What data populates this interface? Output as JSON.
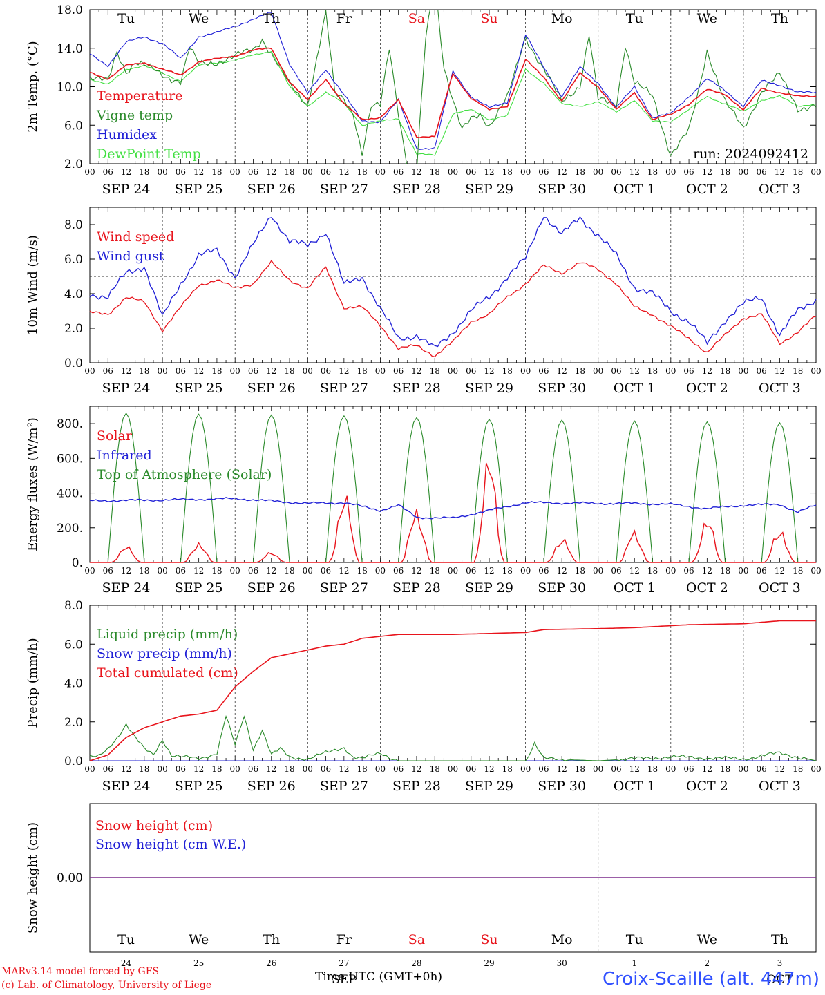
{
  "footer": {
    "credit_line1": "MARv3.14 model forced by GFS",
    "credit_line2": "(c) Lab. of Climatology, University of Liege",
    "time_axis_label": "Time UTC (GMT+0h)",
    "station": "Croix-Scaille (alt. 447m)"
  },
  "colors": {
    "red": "#e8141c",
    "green": "#2a8a2a",
    "blue": "#1f1fd6",
    "lightgreen": "#44e044",
    "weekend": "#e8141c",
    "purple": "#7a2a8a"
  },
  "days": {
    "weekday": [
      "Tu",
      "We",
      "Th",
      "Fr",
      "Sa",
      "Su",
      "Mo",
      "Tu",
      "We",
      "Th"
    ],
    "weekend_flags": [
      false,
      false,
      false,
      false,
      true,
      true,
      false,
      false,
      false,
      false
    ],
    "date_labels": [
      "SEP 24",
      "SEP 25",
      "SEP 26",
      "SEP 27",
      "SEP 28",
      "SEP 29",
      "SEP 30",
      "OCT  1",
      "OCT  2",
      "OCT  3"
    ],
    "day_numbers": [
      "24",
      "25",
      "26",
      "27",
      "28",
      "29",
      "30",
      "1",
      "2",
      "3"
    ],
    "month_markers": [
      "SEP",
      "OCT"
    ],
    "hour_ticks": [
      "00",
      "06",
      "12",
      "18"
    ],
    "final_tick": "00"
  },
  "chart_data": [
    {
      "type": "line",
      "panel": "temperature",
      "ylabel": "2m Temp. (°C)",
      "ylim": [
        2,
        18
      ],
      "yticks": [
        "2.0",
        "6.0",
        "10.0",
        "14.0",
        "18.0"
      ],
      "run_label": "run: 2024092412",
      "x_unit": "hours from 2024-09-24 00 UTC",
      "series": [
        {
          "name": "Temperature",
          "color": "red",
          "x": [
            0,
            6,
            12,
            18,
            24,
            30,
            36,
            42,
            48,
            54,
            60,
            66,
            72,
            78,
            84,
            90,
            96,
            102,
            108,
            114,
            120,
            126,
            132,
            138,
            144,
            150,
            156,
            162,
            168,
            174,
            180,
            186,
            192,
            198,
            204,
            210,
            216,
            222,
            228,
            234,
            240
          ],
          "y": [
            11.5,
            10.8,
            12.2,
            12.5,
            11.8,
            11.2,
            12.6,
            12.9,
            13.2,
            13.8,
            14.0,
            10.5,
            8.6,
            10.8,
            8.2,
            6.6,
            6.8,
            8.6,
            4.8,
            4.8,
            11.4,
            8.8,
            7.6,
            8.0,
            12.8,
            11.0,
            8.5,
            11.4,
            10.0,
            7.6,
            9.4,
            6.6,
            7.1,
            8.2,
            9.7,
            9.2,
            7.6,
            9.8,
            9.4,
            9.0,
            9.0
          ]
        },
        {
          "name": "Vigne temp",
          "color": "green",
          "x": [
            0,
            6,
            9,
            12,
            15,
            18,
            24,
            30,
            33,
            36,
            42,
            48,
            54,
            57,
            60,
            66,
            72,
            78,
            81,
            84,
            87,
            90,
            93,
            96,
            99,
            102,
            105,
            108,
            111,
            114,
            117,
            120,
            123,
            126,
            129,
            132,
            138,
            144,
            150,
            156,
            162,
            165,
            168,
            174,
            177,
            180,
            186,
            192,
            198,
            201,
            204,
            210,
            216,
            222,
            228,
            234,
            240
          ],
          "y": [
            11.0,
            10.5,
            13.6,
            11.6,
            12.6,
            12.2,
            11.2,
            10.6,
            14.0,
            12.3,
            12.6,
            13.1,
            13.9,
            15.0,
            13.4,
            10.2,
            8.2,
            17.6,
            9.2,
            8.8,
            7.4,
            3.0,
            7.8,
            8.0,
            14.2,
            7.4,
            1.6,
            1.0,
            15.0,
            21.0,
            12.2,
            8.6,
            5.4,
            6.6,
            7.2,
            6.0,
            8.8,
            15.2,
            11.8,
            8.4,
            10.2,
            15.4,
            8.6,
            8.2,
            14.4,
            10.4,
            9.0,
            3.0,
            5.4,
            9.2,
            13.8,
            8.4,
            5.6,
            9.6,
            11.2,
            7.8,
            8.0
          ]
        },
        {
          "name": "Humidex",
          "color": "blue",
          "x": [
            0,
            6,
            12,
            18,
            24,
            30,
            36,
            42,
            48,
            54,
            60,
            66,
            72,
            78,
            84,
            90,
            96,
            102,
            108,
            114,
            120,
            126,
            132,
            138,
            144,
            150,
            156,
            162,
            168,
            174,
            180,
            186,
            192,
            198,
            204,
            210,
            216,
            222,
            228,
            234,
            240
          ],
          "y": [
            13.4,
            12.2,
            14.6,
            15.2,
            14.5,
            12.9,
            15.2,
            15.6,
            16.3,
            17.0,
            17.7,
            12.4,
            9.3,
            11.8,
            9.2,
            6.4,
            6.4,
            8.6,
            3.6,
            3.6,
            11.6,
            9.0,
            7.8,
            8.4,
            15.4,
            12.0,
            9.0,
            12.0,
            10.4,
            7.8,
            10.0,
            6.8,
            7.2,
            9.0,
            10.8,
            9.6,
            8.0,
            10.6,
            10.2,
            9.4,
            9.4
          ]
        },
        {
          "name": "DewPoint Temp",
          "color": "lightgreen",
          "x": [
            0,
            6,
            12,
            18,
            24,
            30,
            36,
            42,
            48,
            54,
            60,
            66,
            72,
            78,
            84,
            90,
            96,
            102,
            108,
            114,
            120,
            126,
            132,
            138,
            144,
            150,
            156,
            162,
            168,
            174,
            180,
            186,
            192,
            198,
            204,
            210,
            216,
            222,
            228,
            234,
            240
          ],
          "y": [
            10.8,
            10.2,
            11.8,
            12.2,
            11.4,
            10.6,
            12.2,
            12.5,
            12.7,
            13.3,
            13.7,
            10.0,
            8.0,
            9.4,
            8.3,
            6.0,
            6.4,
            6.7,
            3.0,
            2.9,
            7.2,
            7.6,
            6.6,
            7.0,
            11.8,
            10.4,
            8.2,
            8.0,
            8.4,
            7.4,
            8.6,
            6.4,
            6.4,
            7.6,
            9.0,
            8.2,
            7.4,
            8.6,
            9.0,
            8.0,
            8.2
          ]
        }
      ]
    },
    {
      "type": "line",
      "panel": "wind",
      "ylabel": "10m Wind (m/s)",
      "ylim": [
        0,
        9
      ],
      "yticks": [
        "0.0",
        "2.0",
        "4.0",
        "6.0",
        "8.0"
      ],
      "reference_line": 5,
      "series": [
        {
          "name": "Wind speed",
          "color": "red",
          "x": [
            0,
            6,
            12,
            18,
            24,
            30,
            36,
            42,
            48,
            54,
            60,
            66,
            72,
            78,
            84,
            90,
            96,
            102,
            108,
            114,
            120,
            126,
            132,
            138,
            144,
            150,
            156,
            162,
            168,
            174,
            180,
            186,
            192,
            198,
            204,
            210,
            216,
            222,
            228,
            234,
            240
          ],
          "y": [
            2.9,
            2.8,
            3.8,
            3.5,
            1.9,
            3.2,
            4.5,
            4.8,
            4.3,
            4.6,
            5.8,
            4.8,
            4.3,
            5.5,
            3.2,
            3.2,
            2.2,
            0.8,
            1.0,
            0.4,
            1.2,
            2.4,
            2.8,
            3.8,
            4.6,
            5.6,
            5.2,
            5.8,
            5.4,
            4.6,
            3.2,
            2.8,
            2.1,
            1.4,
            0.6,
            1.6,
            2.6,
            2.8,
            1.1,
            1.8,
            2.7
          ]
        },
        {
          "name": "Wind gust",
          "color": "blue",
          "x": [
            0,
            6,
            12,
            18,
            24,
            30,
            36,
            42,
            48,
            54,
            60,
            66,
            72,
            78,
            84,
            90,
            96,
            102,
            108,
            114,
            120,
            126,
            132,
            138,
            144,
            150,
            156,
            162,
            168,
            174,
            180,
            186,
            192,
            198,
            204,
            210,
            216,
            222,
            228,
            234,
            240
          ],
          "y": [
            4.0,
            3.8,
            5.2,
            5.6,
            2.6,
            4.6,
            6.2,
            6.5,
            5.0,
            6.8,
            8.6,
            7.0,
            6.8,
            7.6,
            4.5,
            5.0,
            3.1,
            1.4,
            1.6,
            0.8,
            1.8,
            3.0,
            3.8,
            5.0,
            6.0,
            8.6,
            7.4,
            8.4,
            7.4,
            6.2,
            4.4,
            4.0,
            3.0,
            2.4,
            1.1,
            2.5,
            3.4,
            3.8,
            1.6,
            3.0,
            3.7
          ]
        }
      ]
    },
    {
      "type": "line",
      "panel": "energy",
      "ylabel": "Energy fluxes (W/m²)",
      "ylim": [
        0,
        900
      ],
      "yticks": [
        "0.",
        "200.",
        "400.",
        "600.",
        "800."
      ],
      "solar_peaks": [
        95,
        140,
        60,
        430,
        370,
        610,
        170,
        195,
        260,
        240
      ],
      "toa_peaks": [
        860,
        855,
        850,
        845,
        835,
        825,
        820,
        815,
        810,
        805
      ],
      "series": [
        {
          "name": "Solar",
          "color": "red"
        },
        {
          "name": "Infrared",
          "color": "blue",
          "x": [
            0,
            24,
            48,
            72,
            84,
            96,
            102,
            108,
            120,
            132,
            144,
            168,
            180,
            192,
            204,
            216,
            228,
            234,
            240
          ],
          "y": [
            355,
            360,
            368,
            340,
            345,
            300,
            330,
            260,
            255,
            300,
            345,
            340,
            340,
            335,
            310,
            330,
            335,
            290,
            330
          ]
        },
        {
          "name": "Top of Atmosphere (Solar)",
          "color": "green"
        }
      ]
    },
    {
      "type": "line",
      "panel": "precip",
      "ylabel": "Precip (mm/h)",
      "ylim": [
        0,
        8
      ],
      "yticks": [
        "0.0",
        "2.0",
        "4.0",
        "6.0",
        "8.0"
      ],
      "series": [
        {
          "name": "Liquid precip (mm/h)",
          "color": "green",
          "x": [
            0,
            3,
            6,
            9,
            12,
            15,
            18,
            21,
            24,
            27,
            30,
            36,
            42,
            45,
            48,
            51,
            54,
            57,
            60,
            63,
            66,
            72,
            84,
            87,
            90,
            96,
            102,
            144,
            147,
            150,
            168,
            192,
            216,
            228,
            240
          ],
          "y": [
            0.2,
            0.2,
            0.6,
            1.2,
            1.9,
            1.2,
            0.6,
            0.3,
            1.1,
            0.3,
            0.2,
            0.1,
            0.4,
            2.3,
            0.8,
            2.3,
            0.6,
            1.6,
            0.3,
            0.6,
            0.2,
            0.1,
            0.7,
            0.2,
            0.1,
            0.4,
            0.0,
            0.0,
            0.9,
            0.1,
            0.0,
            0.2,
            0.1,
            0.4,
            0.0
          ]
        },
        {
          "name": "Snow precip (mm/h)",
          "color": "blue",
          "x": [
            0,
            240
          ],
          "y": [
            0,
            0
          ]
        },
        {
          "name": "Total cumulated (cm)",
          "color": "red",
          "x": [
            0,
            6,
            12,
            18,
            24,
            30,
            36,
            42,
            48,
            54,
            60,
            66,
            72,
            78,
            84,
            90,
            96,
            102,
            108,
            120,
            144,
            150,
            168,
            180,
            192,
            198,
            216,
            228,
            240
          ],
          "y": [
            0.0,
            0.3,
            1.2,
            1.7,
            2.0,
            2.3,
            2.4,
            2.6,
            3.8,
            4.6,
            5.3,
            5.5,
            5.7,
            5.9,
            6.0,
            6.3,
            6.4,
            6.5,
            6.5,
            6.5,
            6.6,
            6.75,
            6.8,
            6.85,
            6.95,
            7.0,
            7.05,
            7.2,
            7.2
          ]
        }
      ]
    },
    {
      "type": "line",
      "panel": "snow",
      "ylabel": "Snow height (cm)",
      "yticks": [
        "0.00"
      ],
      "series": [
        {
          "name": "Snow height (cm)",
          "color": "red",
          "x": [
            0,
            240
          ],
          "y": [
            0,
            0
          ]
        },
        {
          "name": "Snow height (cm W.E.)",
          "color": "blue",
          "x": [
            0,
            240
          ],
          "y": [
            0,
            0
          ]
        }
      ]
    }
  ]
}
